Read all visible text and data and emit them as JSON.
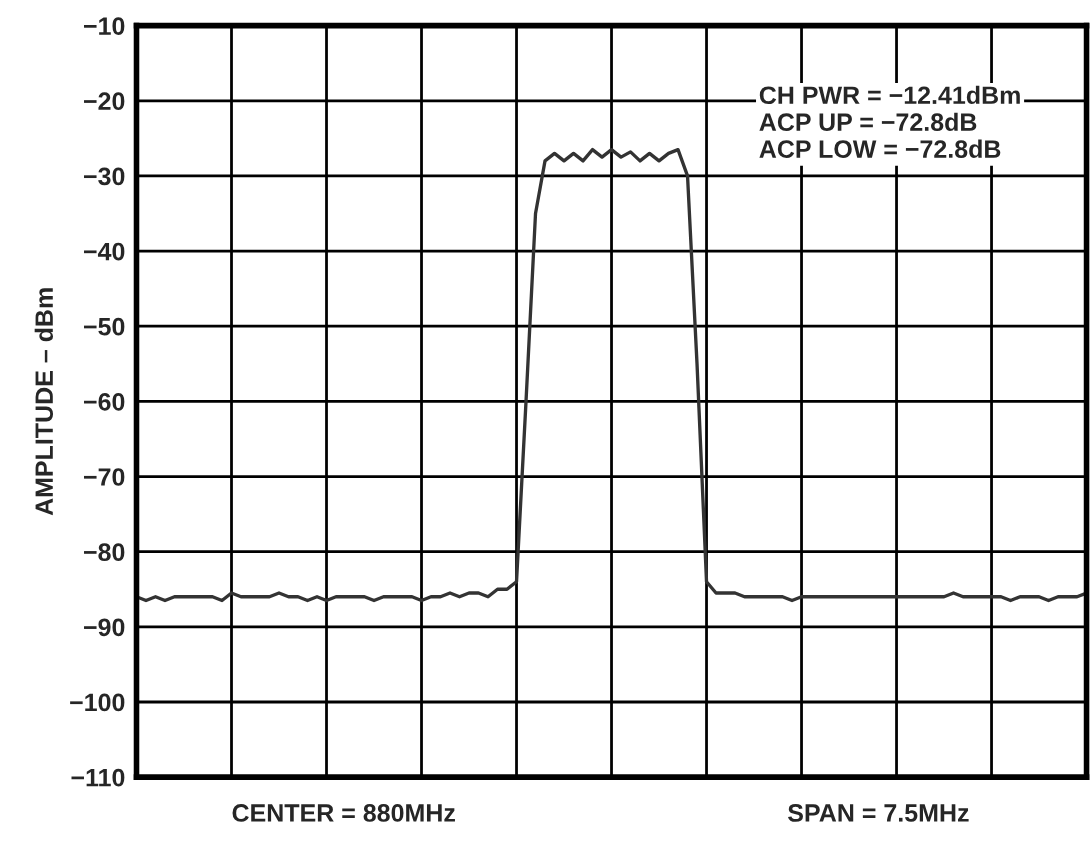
{
  "chart_data": {
    "type": "line",
    "ylabel": "AMPLITUDE – dBm",
    "categories": [
      null,
      null,
      null,
      null,
      null,
      null,
      null,
      null,
      null,
      null,
      null,
      null,
      null,
      null,
      null,
      null,
      null,
      null,
      null,
      null,
      null,
      null,
      null,
      null,
      null,
      null,
      null,
      null,
      null,
      null,
      null,
      null,
      null,
      null,
      null,
      null,
      null,
      null,
      null,
      null,
      null,
      null,
      null,
      null,
      null,
      null,
      null,
      null,
      null,
      null,
      null,
      null,
      null,
      null,
      null,
      null,
      null,
      null,
      null,
      null,
      null,
      null,
      null,
      null,
      null,
      null,
      null,
      null,
      null,
      null,
      null,
      null,
      null,
      null,
      null,
      null,
      null,
      null,
      null,
      null,
      null,
      null,
      null,
      null,
      null,
      null,
      null,
      null,
      null,
      null,
      null,
      null,
      null,
      null,
      null,
      null,
      null,
      null,
      null,
      null,
      null
    ],
    "series": [
      {
        "color": "#333333",
        "values": [
          -86,
          -86.5,
          -86,
          -86.5,
          -86,
          -86,
          -86,
          -86,
          -86,
          -86.5,
          -85.5,
          -86,
          -86,
          -86,
          -86,
          -85.5,
          -86,
          -86,
          -86.5,
          -86,
          -86.5,
          -86,
          -86,
          -86,
          -86,
          -86.5,
          -86,
          -86,
          -86,
          -86,
          -86.5,
          -86,
          -86,
          -85.5,
          -86,
          -85.5,
          -85.5,
          -86,
          -85,
          -85,
          -84,
          -60,
          -35,
          -28,
          -27,
          -28,
          -27,
          -28,
          -26.5,
          -27.5,
          -26.5,
          -27.5,
          -26.8,
          -28,
          -27,
          -28,
          -27,
          -26.5,
          -30,
          -55,
          -84,
          -85.5,
          -85.5,
          -85.5,
          -86,
          -86,
          -86,
          -86,
          -86,
          -86.5,
          -86,
          -86,
          -86,
          -86,
          -86,
          -86,
          -86,
          -86,
          -86,
          -86,
          -86,
          -86,
          -86,
          -86,
          -86,
          -86,
          -85.5,
          -86,
          -86,
          -86,
          -86,
          -86,
          -86.5,
          -86,
          -86,
          -86,
          -86.5,
          -86,
          -86,
          -86,
          -85.5
        ]
      }
    ],
    "ylim": [
      -110,
      -10
    ],
    "yticks": [
      {
        "value": -10,
        "label": "−10"
      },
      {
        "value": -20,
        "label": "−20"
      },
      {
        "value": -30,
        "label": "−30"
      },
      {
        "value": -40,
        "label": "−40"
      },
      {
        "value": -50,
        "label": "−50"
      },
      {
        "value": -60,
        "label": "−60"
      },
      {
        "value": -70,
        "label": "−70"
      },
      {
        "value": -80,
        "label": "−80"
      },
      {
        "value": -90,
        "label": "−90"
      },
      {
        "value": -100,
        "label": "−100"
      },
      {
        "value": -110,
        "label": "−110"
      }
    ],
    "grid": true,
    "legend": false,
    "annotations": [
      "CH PWR = −12.41dBm\nACP UP = −72.8dB\nACP LOW = −72.8dB",
      "CENTER = 880MHz",
      "SPAN = 7.5MHz"
    ]
  }
}
